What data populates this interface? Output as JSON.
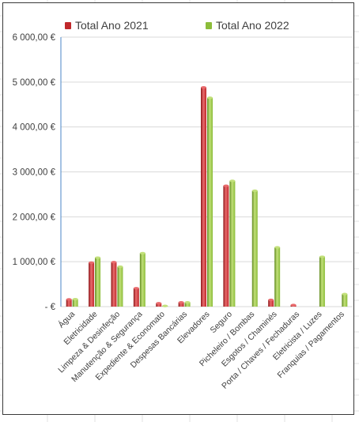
{
  "colors": {
    "series_2021": "#c0282b",
    "series_2021_dark": "#8c1518",
    "series_2021_light": "#e86a6c",
    "series_2022": "#8cbd3a",
    "series_2022_dark": "#5f8a1e",
    "series_2022_light": "#c2e07a",
    "gridline": "#d9d9d9",
    "axis": "#4a86c7",
    "sheet_grid": "#e1e1e1"
  },
  "chart_data": {
    "type": "bar",
    "title": "",
    "xlabel": "",
    "ylabel": "",
    "ylim": [
      0,
      6000
    ],
    "y_ticks": [
      0,
      1000,
      2000,
      3000,
      4000,
      5000,
      6000
    ],
    "y_tick_labels": [
      "-   €",
      "1 000,00 €",
      "2 000,00 €",
      "3 000,00 €",
      "4 000,00 €",
      "5 000,00 €",
      "6 000,00 €"
    ],
    "grid": true,
    "legend_position": "top",
    "categories": [
      "Água",
      "Eletricidade",
      "Limpeza & Desinfeção",
      "Manutenção & Segurança",
      "Expediente & Economato",
      "Despesas Bancárias",
      "Elevadores",
      "Seguro",
      "Picheleiro / Bombas",
      "Esgotos / Chaminés",
      "Porta / Chaves / Fechaduras",
      "Eletricista / Luzes",
      "Franquias / Pagamentos"
    ],
    "series": [
      {
        "name": "Total Ano 2021",
        "values": [
          160,
          980,
          990,
          410,
          75,
          95,
          4880,
          2690,
          0,
          150,
          35,
          0,
          0
        ]
      },
      {
        "name": "Total Ano 2022",
        "values": [
          165,
          1090,
          890,
          1190,
          15,
          95,
          4650,
          2800,
          2580,
          1320,
          0,
          1110,
          280
        ]
      }
    ]
  }
}
